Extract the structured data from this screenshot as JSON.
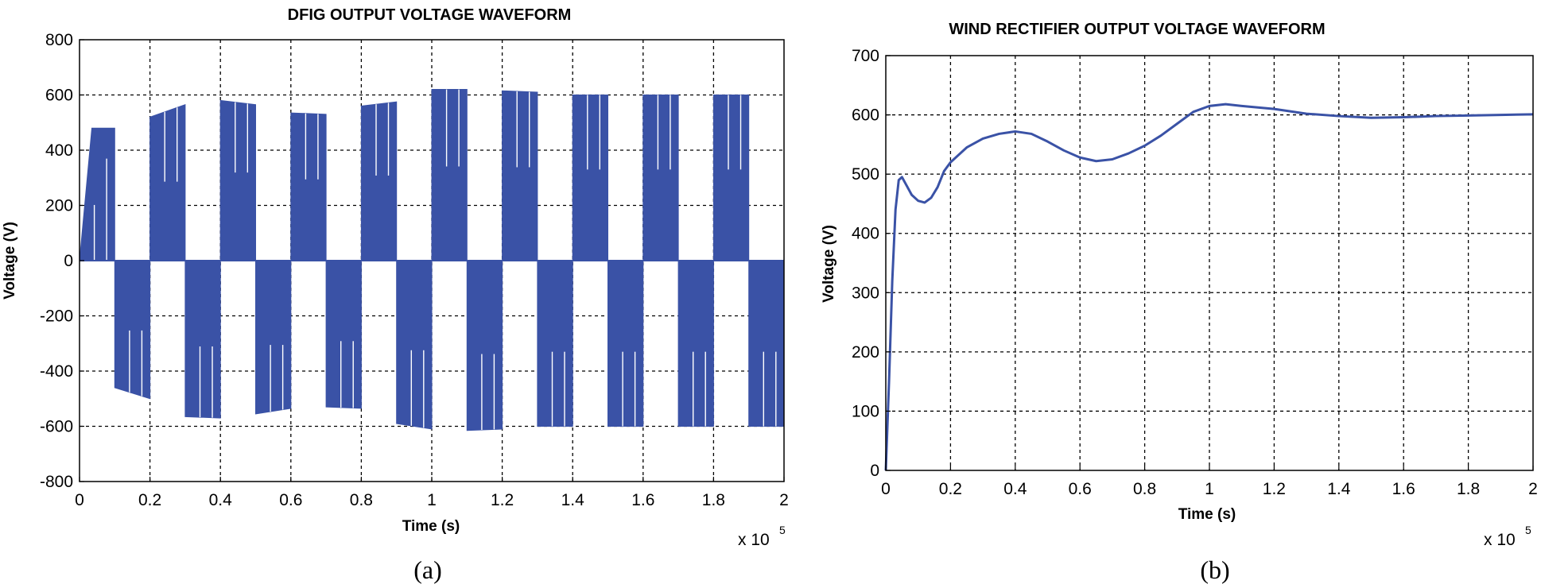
{
  "charts": [
    {
      "title": "DFIG OUTPUT VOLTAGE WAVEFORM",
      "caption": "(a)",
      "xlabel": "Time (s)",
      "ylabel": "Voltage (V)",
      "x_multiplier": "x 10",
      "x_multiplier_exp": "5",
      "x_ticks": [
        "0",
        "0.2",
        "0.4",
        "0.6",
        "0.8",
        "1",
        "1.2",
        "1.4",
        "1.6",
        "1.8",
        "2"
      ],
      "y_ticks": [
        "800",
        "600",
        "400",
        "200",
        "0",
        "-200",
        "-400",
        "-600",
        "-800"
      ]
    },
    {
      "title": "WIND RECTIFIER OUTPUT VOLTAGE WAVEFORM",
      "caption": "(b)",
      "xlabel": "Time (s)",
      "ylabel": "Voltage (V)",
      "x_multiplier": "x 10",
      "x_multiplier_exp": "5",
      "x_ticks": [
        "0",
        "0.2",
        "0.4",
        "0.6",
        "0.8",
        "1",
        "1.2",
        "1.4",
        "1.6",
        "1.8",
        "2"
      ],
      "y_ticks": [
        "700",
        "600",
        "500",
        "400",
        "300",
        "200",
        "100",
        "0"
      ]
    }
  ],
  "chart_data": [
    {
      "type": "area",
      "title": "DFIG OUTPUT VOLTAGE WAVEFORM",
      "xlabel": "Time (s)",
      "ylabel": "Voltage (V)",
      "x_scale": "x 10^5",
      "xlim": [
        0,
        2
      ],
      "ylim": [
        -800,
        800
      ],
      "grid": true,
      "color": "#3a52a6",
      "description_unit": "upper and lower envelope of a switching waveform; segments of 0.1 (x10^5) alternate between positive and negative polarity",
      "segments": [
        {
          "x": [
            0.0,
            0.1
          ],
          "polarity": "positive",
          "envelope_start": 0,
          "envelope_end": 480
        },
        {
          "x": [
            0.1,
            0.2
          ],
          "polarity": "negative",
          "envelope_start": -460,
          "envelope_end": -500
        },
        {
          "x": [
            0.2,
            0.3
          ],
          "polarity": "positive",
          "envelope_start": 520,
          "envelope_end": 565
        },
        {
          "x": [
            0.3,
            0.4
          ],
          "polarity": "negative",
          "envelope_start": -565,
          "envelope_end": -570
        },
        {
          "x": [
            0.4,
            0.5
          ],
          "polarity": "positive",
          "envelope_start": 580,
          "envelope_end": 565
        },
        {
          "x": [
            0.5,
            0.6
          ],
          "polarity": "negative",
          "envelope_start": -555,
          "envelope_end": -535
        },
        {
          "x": [
            0.6,
            0.7
          ],
          "polarity": "positive",
          "envelope_start": 535,
          "envelope_end": 530
        },
        {
          "x": [
            0.7,
            0.8
          ],
          "polarity": "negative",
          "envelope_start": -530,
          "envelope_end": -535
        },
        {
          "x": [
            0.8,
            0.9
          ],
          "polarity": "positive",
          "envelope_start": 560,
          "envelope_end": 575
        },
        {
          "x": [
            0.9,
            1.0
          ],
          "polarity": "negative",
          "envelope_start": -590,
          "envelope_end": -610
        },
        {
          "x": [
            1.0,
            1.1
          ],
          "polarity": "positive",
          "envelope_start": 620,
          "envelope_end": 620
        },
        {
          "x": [
            1.1,
            1.2
          ],
          "polarity": "negative",
          "envelope_start": -615,
          "envelope_end": -610
        },
        {
          "x": [
            1.2,
            1.3
          ],
          "polarity": "positive",
          "envelope_start": 615,
          "envelope_end": 610
        },
        {
          "x": [
            1.3,
            1.4
          ],
          "polarity": "negative",
          "envelope_start": -600,
          "envelope_end": -600
        },
        {
          "x": [
            1.4,
            1.5
          ],
          "polarity": "positive",
          "envelope_start": 600,
          "envelope_end": 600
        },
        {
          "x": [
            1.5,
            1.6
          ],
          "polarity": "negative",
          "envelope_start": -600,
          "envelope_end": -600
        },
        {
          "x": [
            1.6,
            1.7
          ],
          "polarity": "positive",
          "envelope_start": 600,
          "envelope_end": 600
        },
        {
          "x": [
            1.7,
            1.8
          ],
          "polarity": "negative",
          "envelope_start": -600,
          "envelope_end": -600
        },
        {
          "x": [
            1.8,
            1.9
          ],
          "polarity": "positive",
          "envelope_start": 600,
          "envelope_end": 600
        },
        {
          "x": [
            1.9,
            2.0
          ],
          "polarity": "negative",
          "envelope_start": -600,
          "envelope_end": -600
        }
      ]
    },
    {
      "type": "line",
      "title": "WIND RECTIFIER OUTPUT VOLTAGE WAVEFORM",
      "xlabel": "Time (s)",
      "ylabel": "Voltage (V)",
      "x_scale": "x 10^5",
      "xlim": [
        0,
        2
      ],
      "ylim": [
        0,
        700
      ],
      "grid": true,
      "color": "#3a52a6",
      "series": [
        {
          "x": [
            0,
            0.01,
            0.02,
            0.03,
            0.04,
            0.05,
            0.06,
            0.08,
            0.1,
            0.12,
            0.14,
            0.16,
            0.18,
            0.2,
            0.25,
            0.3,
            0.35,
            0.4,
            0.45,
            0.5,
            0.55,
            0.6,
            0.65,
            0.7,
            0.75,
            0.8,
            0.85,
            0.9,
            0.95,
            1.0,
            1.05,
            1.1,
            1.2,
            1.3,
            1.4,
            1.5,
            1.6,
            1.7,
            1.8,
            1.9,
            2.0
          ],
          "y": [
            0,
            150,
            320,
            440,
            490,
            495,
            485,
            465,
            455,
            452,
            460,
            478,
            505,
            520,
            545,
            560,
            568,
            572,
            568,
            555,
            540,
            528,
            522,
            525,
            535,
            548,
            565,
            585,
            605,
            615,
            618,
            615,
            610,
            602,
            598,
            595,
            596,
            598,
            599,
            600,
            601
          ]
        }
      ]
    }
  ]
}
